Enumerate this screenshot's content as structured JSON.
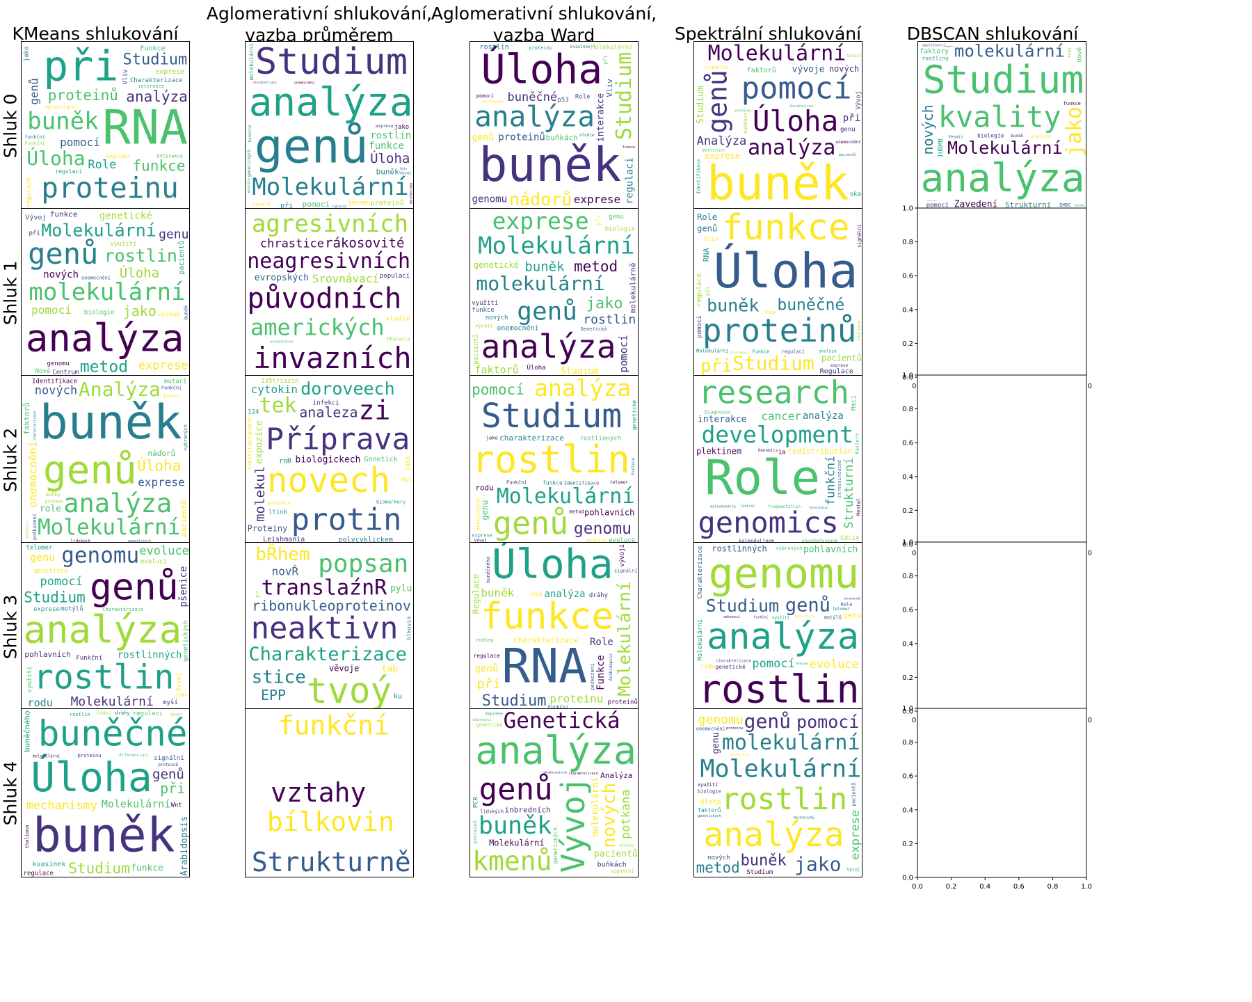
{
  "column_titles": [
    "KMeans shlukování",
    "Aglomerativní shlukování,\nvazba průměrem",
    "Aglomerativní shlukování,\nvazba Ward",
    "Spektrální shlukování",
    "DBSCAN shlukování"
  ],
  "row_labels": [
    "Shluk 0",
    "Shluk 1",
    "Shluk 2",
    "Shluk 3",
    "Shluk 4"
  ],
  "empty_axes_ticks": {
    "x": [
      "0.0",
      "0.2",
      "0.4",
      "0.6",
      "0.8",
      "1.0"
    ],
    "y": [
      "0.0",
      "0.2",
      "0.4",
      "0.6",
      "0.8",
      "1.0"
    ]
  },
  "palette": [
    "#440154",
    "#46327e",
    "#365c8d",
    "#277f8e",
    "#1fa187",
    "#4ac16d",
    "#a0da39",
    "#fde725"
  ],
  "chart_data": {
    "type": "wordcloud-grid",
    "clouds": [
      [
        [
          "RNA",
          "při",
          "proteinu",
          "buněk",
          "Úloha",
          "proteinů",
          "funkce",
          "Studium",
          "analýza",
          "Charakterizace",
          "Role",
          "genů",
          "pomocí",
          "Regulace",
          "Vliv",
          "exprese",
          "Funkce",
          "Molekulární",
          "regulaci",
          "interakce",
          "Funkční",
          "regulace",
          "jako",
          "funkční",
          "Interakce"
        ],
        [
          "genů",
          "analýza",
          "Studium",
          "Molekulární",
          "Úloha",
          "rostlin",
          "funkce",
          "buněk",
          "při",
          "pomocí",
          "proteinů",
          "genomu",
          "exprese",
          "buněčné",
          "molekulární",
          "novych",
          "jako",
          "charakterizace",
          "Analýza",
          "faktorů",
          "genetických",
          "onemocnění",
          "Vývoj",
          "Role",
          "mechanismy"
        ],
        [
          "buněk",
          "Úloha",
          "analýza",
          "Studium",
          "nádorů",
          "buněčné",
          "regulaci",
          "interakce",
          "exprese",
          "genomu",
          "buňkách",
          "genů",
          "Vliv",
          "proteinů",
          "Molekulární",
          "Role",
          "proteinu",
          "pomocí",
          "rostlin",
          "kvasinek",
          "mechanismy",
          "p53",
          "funkce",
          "při",
          "studie"
        ],
        [
          "buněk",
          "Molekulární",
          "Úloha",
          "pomocí",
          "genů",
          "analýza",
          "Analýza",
          "exprese",
          "vývoje",
          "nových",
          "faktorů",
          "Studium",
          "při",
          "signální",
          "onemocnění",
          "genetických",
          "pacientů",
          "buňkách",
          "proteinu",
          "Charakterizace",
          "genu",
          "Vývoj",
          "mutací",
          "Identifikace",
          "oka"
        ],
        [
          "Studium",
          "analýza",
          "Molekulární",
          "kvality",
          "jako",
          "molekulární",
          "nových",
          "Zavedení",
          "Strukturní",
          "Analýza",
          "pomocí",
          "faktory",
          "biologie",
          "IUBMB",
          "Vesmír",
          "rostliny",
          "funkce",
          "FEBS",
          "buněk",
          "EMBC",
          "reprezentace",
          "společnosti",
          "význam",
          "kyselin",
          "nové"
        ]
      ],
      [
        [
          "analýza",
          "Molekulární",
          "molekulární",
          "genů",
          "rostlin",
          "metod",
          "jako",
          "pomocí",
          "exprese",
          "genu",
          "Úloha",
          "nových",
          "genetické",
          "funkce",
          "Vývoj",
          "pacientů",
          "genomu",
          "buněk",
          "využití",
          "biologie",
          "při",
          "Centrum",
          "Nové",
          "význam",
          "onemocnění"
        ],
        [
          "agresivních",
          "neagresivních",
          "invazních",
          "původních",
          "amerických",
          "chrastice",
          "Srovnávací",
          "rákosovité",
          "evropských",
          "populací",
          "studie",
          "Phalaris",
          "arundinacea"
        ],
        [
          "Molekulární",
          "analýza",
          "molekulární",
          "genů",
          "exprese",
          "metod",
          "rostlin",
          "jako",
          "buněk",
          "Studium",
          "pomocí",
          "faktorů",
          "genetické",
          "onemocnění",
          "genu",
          "molekulárně",
          "pacientů",
          "využití",
          "při",
          "nových",
          "Úloha",
          "funkce",
          "biologie",
          "Genetická",
          "vývoje"
        ],
        [
          "Úloha",
          "proteinů",
          "funkce",
          "Studium",
          "buněk",
          "při",
          "buněčné",
          "pacientů",
          "Regulace",
          "regulace",
          "Molekulární",
          "genů",
          "RNA",
          "Role",
          "Vliv",
          "regulaci",
          "analýza",
          "p53",
          "Funkce",
          "Arabidopsis",
          "exprese",
          "signální",
          "jako",
          "thaliana",
          "pomoci"
        ],
        []
      ],
      [
        [
          "buněk",
          "genů",
          "Molekulární",
          "analýza",
          "Analýza",
          "nových",
          "Úloha",
          "onemocnění",
          "exprese",
          "faktorů",
          "role",
          "nádorů",
          "Identifikace",
          "mutací",
          "pacientů",
          "pomocí",
          "buňky",
          "genetických",
          "lidských",
          "Funkční",
          "proteinu",
          "poškození",
          "vybraných",
          "charakterizace",
          "potkana"
        ],
        [
          "Příprava",
          "doroveech",
          "novech",
          "protin",
          "zi",
          "tek",
          "analeza",
          "Proteiny",
          "cytokin",
          "molekul",
          "biologickech",
          "substituovaneech",
          "Leishmania",
          "polycyklickem",
          "expozice",
          "infekci",
          "rnR",
          "Genetick",
          "135triazin",
          "124",
          "jako",
          "ltink",
          "produkce",
          "biomarkery",
          "myc"
        ],
        [
          "rostlin",
          "Molekulární",
          "Studium",
          "genů",
          "analýza",
          "pomocí",
          "genomu",
          "charakterizace",
          "pohlavních",
          "evoluce",
          "rodu",
          "genu",
          "rostlinných",
          "genetické",
          "funkce",
          "genetických",
          "Funkční",
          "pšenice",
          "Identifikace",
          "jako",
          "metod",
          "Evoluce",
          "exprese",
          "telomer",
          "Vývoj"
        ],
        [
          "Role",
          "research",
          "development",
          "genomics",
          "Strukturní",
          "cancer",
          "funkční",
          "interakce",
          "analýza",
          "Mmi1",
          "redistribution",
          "plektinem",
          "kalmodulinem",
          "phosphataseand",
          "Cdc14",
          "stressinduced",
          "1a",
          "Genomics",
          "mitochondria",
          "fragmentation",
          "Diagnoses",
          "Central",
          "Retardation",
          "Mental",
          "Eastern"
        ],
        []
      ],
      [
        [
          "analýza",
          "rostlin",
          "genů",
          "genomu",
          "Studium",
          "pomocí",
          "Molekulární",
          "rostlinných",
          "pohlavních",
          "evoluce",
          "genu",
          "rodu",
          "genetických",
          "genetické",
          "pšenice",
          "Charakterizace",
          "telomer",
          "myší",
          "motýlů",
          "evoluci",
          "exprese",
          "Vývoj",
          "jako",
          "Funkční",
          "využití"
        ],
        [
          "Charakterizace",
          "translaźnR",
          "tvoý",
          "neaktivn",
          "popsan",
          "ribonukleoproteinov",
          "bŘhem",
          "stice",
          "EPP",
          "novŘ",
          "věvoje",
          "pylu",
          "tab",
          "zr",
          "ku",
          "blkovin"
        ],
        [
          "RNA",
          "Úloha",
          "funkce",
          "Molekulární",
          "Studium",
          "proteinu",
          "při",
          "Funkce",
          "buněk",
          "analýza",
          "Charakterizace",
          "signální",
          "Role",
          "genů",
          "Regulace",
          "regulace",
          "proteinů",
          "dráhy",
          "Arabidopsis",
          "vývoji",
          "poškození",
          "rodiny",
          "buněčného",
          "oka",
          "Funkční"
        ],
        [
          "rostlin",
          "genomu",
          "analýza",
          "Studium",
          "genů",
          "pomocí",
          "Molekulární",
          "pohlavních",
          "evoluce",
          "rostlinných",
          "charakterizace",
          "Charakterizace",
          "vybraných",
          "genu",
          "genetické",
          "telomer",
          "Role",
          "využití",
          "rodu",
          "sekvencí",
          "chromosomů",
          "genetických",
          "motýlů",
          "Evoluce",
          "funkční"
        ],
        []
      ],
      [
        [
          "buněk",
          "Úloha",
          "buněčné",
          "Molekulární",
          "Studium",
          "mechanismy",
          "funkce",
          "genů",
          "při",
          "Arabidopsis",
          "buněčného",
          "regulace",
          "signální",
          "kvasinek",
          "regulaci",
          "rostlin",
          "proteinu",
          "dráhy",
          "thaliana",
          "proteinů",
          "molekulární",
          "diferenciaci",
          "Wnt",
          "Vývoj",
          "funkci"
        ],
        [
          "funkční",
          "bílkovin",
          "vztahy",
          "Strukturně"
        ],
        [
          "analýza",
          "Vývoj",
          "buněk",
          "genů",
          "kmenů",
          "Genetická",
          "nových",
          "potkana",
          "molekulární",
          "pacientů",
          "Molekulární",
          "Analýza",
          "buňkách",
          "genetických",
          "inbredních",
          "proteinů",
          "signální",
          "genetické",
          "lidských",
          "exprese",
          "PCR",
          "rekombinantních",
          "účinnosti",
          "detekci",
          "charakterizace"
        ],
        [
          "Molekulární",
          "molekulární",
          "analýza",
          "rostlin",
          "genů",
          "buněk",
          "jako",
          "pomocí",
          "genomu",
          "metod",
          "exprese",
          "Studium",
          "genu",
          "onemocnění",
          "biologie",
          "využití",
          "Úloha",
          "faktorů",
          "pacientů",
          "nových",
          "proteinu",
          "genetických",
          "Vývoj",
          "molekulárně",
          "mechanismy"
        ],
        []
      ]
    ]
  }
}
